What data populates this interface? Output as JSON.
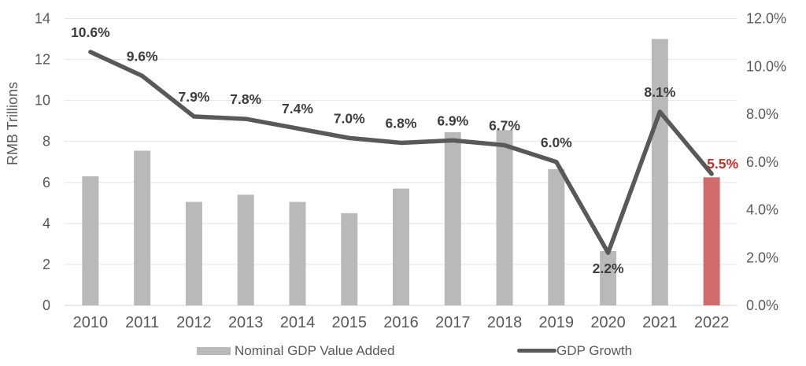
{
  "chart_data": {
    "type": "combo-bar-line",
    "title": "",
    "categories": [
      "2010",
      "2011",
      "2012",
      "2013",
      "2014",
      "2015",
      "2016",
      "2017",
      "2018",
      "2019",
      "2020",
      "2021",
      "2022"
    ],
    "series": [
      {
        "name": "Nominal GDP Value Added",
        "type": "bar",
        "axis": "left",
        "values": [
          6.3,
          7.55,
          5.05,
          5.4,
          5.05,
          4.5,
          5.7,
          8.45,
          8.55,
          6.65,
          2.65,
          13.0,
          6.25
        ],
        "highlight_index": 12
      },
      {
        "name": "GDP Growth",
        "type": "line",
        "axis": "right",
        "values": [
          10.6,
          9.6,
          7.9,
          7.8,
          7.4,
          7.0,
          6.8,
          6.9,
          6.7,
          6.0,
          2.2,
          8.1,
          5.5
        ],
        "point_labels": [
          "10.6%",
          "9.6%",
          "7.9%",
          "7.8%",
          "7.4%",
          "7.0%",
          "6.8%",
          "6.9%",
          "6.7%",
          "6.0%",
          "2.2%",
          "8.1%",
          "5.5%"
        ],
        "highlight_label_index": 12
      }
    ],
    "left_axis": {
      "title": "RMB Trillions",
      "min": 0,
      "max": 14,
      "step": 2,
      "tick_labels": [
        "14",
        "12",
        "10",
        "8",
        "6",
        "4",
        "2",
        "0"
      ]
    },
    "right_axis": {
      "min": 0,
      "max": 12,
      "step": 2,
      "tick_labels": [
        "12.0%",
        "10.0%",
        "8.0%",
        "6.0%",
        "4.0%",
        "2.0%",
        "0.0%"
      ]
    },
    "legend": {
      "items": [
        {
          "label": "Nominal GDP Value Added",
          "swatch": "bar"
        },
        {
          "label": "GDP Growth",
          "swatch": "line"
        }
      ]
    },
    "grid": "horizontal",
    "legend_position": "bottom",
    "colors": {
      "bar": "#b9b9b9",
      "bar_highlight": "#d16b6b",
      "line": "#595959",
      "data_label": "#3d3d3d",
      "data_label_highlight": "#c9302a",
      "axis_text": "#595959",
      "gridline": "#e4e4e4",
      "baseline": "#d5d5d5",
      "background": "#ffffff"
    }
  }
}
